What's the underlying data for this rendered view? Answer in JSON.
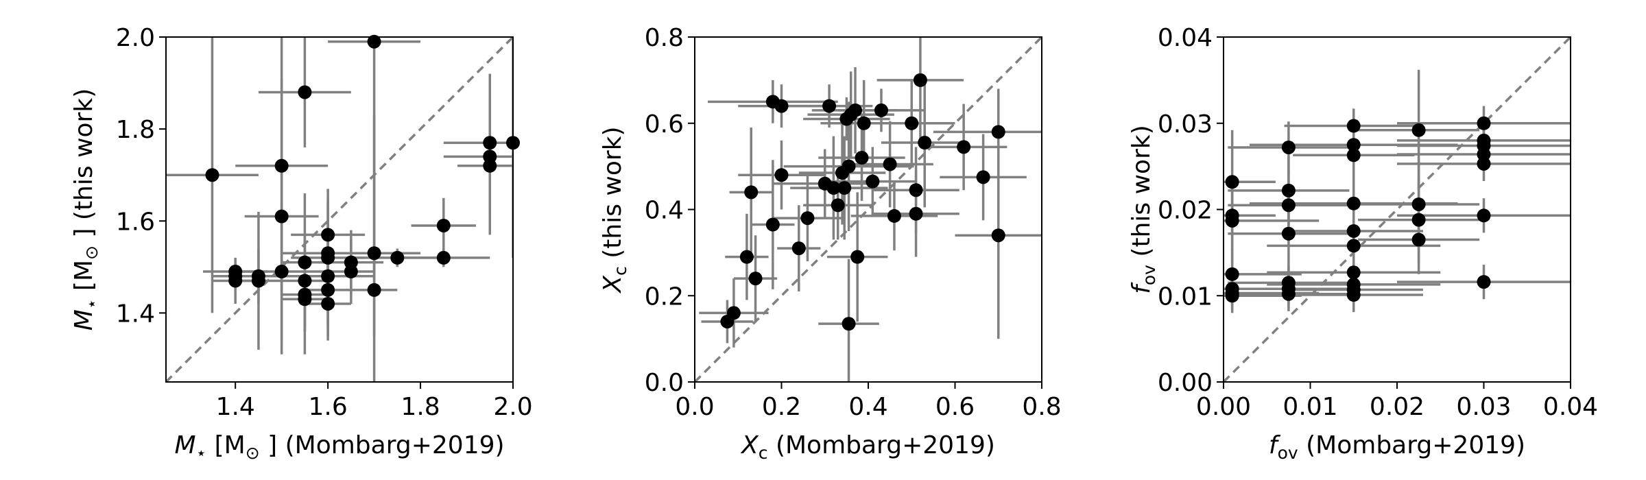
{
  "chart_data": [
    {
      "type": "scatter",
      "xlabel_parts": {
        "sym": "M",
        "sub": "⋆",
        "unit_open": " [M",
        "unit_sub": "⊙",
        "unit_close": " ] (Mombarg+2019)"
      },
      "ylabel_parts": {
        "sym": "M",
        "sub": "⋆",
        "unit_open": " [M",
        "unit_sub": "⊙",
        "unit_close": " ] (this work)"
      },
      "xlim": [
        1.25,
        2.0
      ],
      "ylim": [
        1.25,
        2.0
      ],
      "xticks": [
        1.4,
        1.6,
        1.8,
        2.0
      ],
      "yticks": [
        1.4,
        1.6,
        1.8,
        2.0
      ],
      "xtick_labels": [
        "1.4",
        "1.6",
        "1.8",
        "2.0"
      ],
      "ytick_labels": [
        "1.4",
        "1.6",
        "1.8",
        "2.0"
      ],
      "diagonal": true,
      "points": [
        {
          "x": 1.35,
          "y": 1.7,
          "xerr": 0.1,
          "yerr": 0.3
        },
        {
          "x": 1.4,
          "y": 1.49,
          "xerr": 0.07,
          "yerr": 0.02
        },
        {
          "x": 1.4,
          "y": 1.48,
          "xerr": 0.05,
          "yerr": 0.03
        },
        {
          "x": 1.4,
          "y": 1.47,
          "xerr": 0.05,
          "yerr": 0.05
        },
        {
          "x": 1.45,
          "y": 1.48,
          "xerr": 0.05,
          "yerr": 0.06
        },
        {
          "x": 1.45,
          "y": 1.47,
          "xerr": 0.05,
          "yerr": 0.15
        },
        {
          "x": 1.5,
          "y": 1.72,
          "xerr": 0.1,
          "yerr": 0.28
        },
        {
          "x": 1.5,
          "y": 1.61,
          "xerr": 0.08,
          "yerr": 0.3
        },
        {
          "x": 1.5,
          "y": 1.49,
          "xerr": 0.1,
          "yerr": 0.15
        },
        {
          "x": 1.55,
          "y": 1.88,
          "xerr": 0.1,
          "yerr": 0.12
        },
        {
          "x": 1.55,
          "y": 1.51,
          "xerr": 0.05,
          "yerr": 0.15
        },
        {
          "x": 1.55,
          "y": 1.47,
          "xerr": 0.05,
          "yerr": 0.1
        },
        {
          "x": 1.55,
          "y": 1.44,
          "xerr": 0.05,
          "yerr": 0.08
        },
        {
          "x": 1.55,
          "y": 1.43,
          "xerr": 0.05,
          "yerr": 0.12
        },
        {
          "x": 1.6,
          "y": 1.57,
          "xerr": 0.08,
          "yerr": 0.07
        },
        {
          "x": 1.6,
          "y": 1.53,
          "xerr": 0.1,
          "yerr": 0.12
        },
        {
          "x": 1.6,
          "y": 1.52,
          "xerr": 0.08,
          "yerr": 0.15
        },
        {
          "x": 1.6,
          "y": 1.48,
          "xerr": 0.1,
          "yerr": 0.1
        },
        {
          "x": 1.6,
          "y": 1.45,
          "xerr": 0.05,
          "yerr": 0.1
        },
        {
          "x": 1.6,
          "y": 1.42,
          "xerr": 0.05,
          "yerr": 0.08
        },
        {
          "x": 1.65,
          "y": 1.51,
          "xerr": 0.07,
          "yerr": 0.07
        },
        {
          "x": 1.65,
          "y": 1.49,
          "xerr": 0.05,
          "yerr": 0.07
        },
        {
          "x": 1.7,
          "y": 1.99,
          "xerr": 0.1,
          "yerr": 0.5
        },
        {
          "x": 1.7,
          "y": 1.53,
          "xerr": 0.1,
          "yerr": 0.3
        },
        {
          "x": 1.7,
          "y": 1.45,
          "xerr": 0.05,
          "yerr": 0.1
        },
        {
          "x": 1.75,
          "y": 1.52,
          "xerr": 0.1,
          "yerr": 0.02
        },
        {
          "x": 1.85,
          "y": 1.59,
          "xerr": 0.07,
          "yerr": 0.06
        },
        {
          "x": 1.85,
          "y": 1.52,
          "xerr": 0.1,
          "yerr": 0.02
        },
        {
          "x": 1.95,
          "y": 1.77,
          "xerr": 0.1,
          "yerr": 0.15
        },
        {
          "x": 1.95,
          "y": 1.74,
          "xerr": 0.1,
          "yerr": 0.03
        },
        {
          "x": 1.95,
          "y": 1.72,
          "xerr": 0.07,
          "yerr": 0.15
        },
        {
          "x": 2.0,
          "y": 1.77,
          "xerr": 0.1,
          "yerr": 0.25
        }
      ]
    },
    {
      "type": "scatter",
      "xlabel_parts": {
        "sym": "X",
        "sub": "c",
        "rest": " (Mombarg+2019)"
      },
      "ylabel_parts": {
        "sym": "X",
        "sub": "c",
        "rest": " (this work)"
      },
      "xlim": [
        0.0,
        0.8
      ],
      "ylim": [
        0.0,
        0.8
      ],
      "xticks": [
        0.0,
        0.2,
        0.4,
        0.6,
        0.8
      ],
      "yticks": [
        0.0,
        0.2,
        0.4,
        0.6,
        0.8
      ],
      "xtick_labels": [
        "0.0",
        "0.2",
        "0.4",
        "0.6",
        "0.8"
      ],
      "ytick_labels": [
        "0.0",
        "0.2",
        "0.4",
        "0.6",
        "0.8"
      ],
      "diagonal": true,
      "points": [
        {
          "x": 0.075,
          "y": 0.14,
          "xerr": 0.06,
          "yerr": 0.05
        },
        {
          "x": 0.09,
          "y": 0.16,
          "xerr": 0.08,
          "yerr": 0.08
        },
        {
          "x": 0.12,
          "y": 0.29,
          "xerr": 0.05,
          "yerr": 0.1
        },
        {
          "x": 0.13,
          "y": 0.44,
          "xerr": 0.05,
          "yerr": 0.15
        },
        {
          "x": 0.14,
          "y": 0.24,
          "xerr": 0.05,
          "yerr": 0.1
        },
        {
          "x": 0.18,
          "y": 0.65,
          "xerr": 0.15,
          "yerr": 0.05
        },
        {
          "x": 0.18,
          "y": 0.365,
          "xerr": 0.05,
          "yerr": 0.15
        },
        {
          "x": 0.2,
          "y": 0.64,
          "xerr": 0.1,
          "yerr": 0.05
        },
        {
          "x": 0.2,
          "y": 0.48,
          "xerr": 0.1,
          "yerr": 0.08
        },
        {
          "x": 0.24,
          "y": 0.31,
          "xerr": 0.05,
          "yerr": 0.1
        },
        {
          "x": 0.26,
          "y": 0.38,
          "xerr": 0.08,
          "yerr": 0.1
        },
        {
          "x": 0.3,
          "y": 0.46,
          "xerr": 0.12,
          "yerr": 0.08
        },
        {
          "x": 0.31,
          "y": 0.64,
          "xerr": 0.1,
          "yerr": 0.05
        },
        {
          "x": 0.32,
          "y": 0.45,
          "xerr": 0.1,
          "yerr": 0.12
        },
        {
          "x": 0.33,
          "y": 0.41,
          "xerr": 0.08,
          "yerr": 0.08
        },
        {
          "x": 0.34,
          "y": 0.485,
          "xerr": 0.1,
          "yerr": 0.12
        },
        {
          "x": 0.345,
          "y": 0.45,
          "xerr": 0.1,
          "yerr": 0.12
        },
        {
          "x": 0.35,
          "y": 0.61,
          "xerr": 0.1,
          "yerr": 0.05
        },
        {
          "x": 0.355,
          "y": 0.5,
          "xerr": 0.15,
          "yerr": 0.15
        },
        {
          "x": 0.355,
          "y": 0.135,
          "xerr": 0.07,
          "yerr": 0.15
        },
        {
          "x": 0.36,
          "y": 0.62,
          "xerr": 0.1,
          "yerr": 0.1
        },
        {
          "x": 0.37,
          "y": 0.63,
          "xerr": 0.1,
          "yerr": 0.1
        },
        {
          "x": 0.375,
          "y": 0.29,
          "xerr": 0.07,
          "yerr": 0.15
        },
        {
          "x": 0.385,
          "y": 0.52,
          "xerr": 0.1,
          "yerr": 0.1
        },
        {
          "x": 0.39,
          "y": 0.6,
          "xerr": 0.1,
          "yerr": 0.1
        },
        {
          "x": 0.41,
          "y": 0.465,
          "xerr": 0.1,
          "yerr": 0.08
        },
        {
          "x": 0.43,
          "y": 0.63,
          "xerr": 0.1,
          "yerr": 0.05
        },
        {
          "x": 0.45,
          "y": 0.505,
          "xerr": 0.1,
          "yerr": 0.1
        },
        {
          "x": 0.46,
          "y": 0.385,
          "xerr": 0.1,
          "yerr": 0.08
        },
        {
          "x": 0.5,
          "y": 0.6,
          "xerr": 0.1,
          "yerr": 0.1
        },
        {
          "x": 0.51,
          "y": 0.39,
          "xerr": 0.1,
          "yerr": 0.1
        },
        {
          "x": 0.51,
          "y": 0.445,
          "xerr": 0.1,
          "yerr": 0.1
        },
        {
          "x": 0.52,
          "y": 0.7,
          "xerr": 0.1,
          "yerr": 0.15
        },
        {
          "x": 0.53,
          "y": 0.555,
          "xerr": 0.1,
          "yerr": 0.15
        },
        {
          "x": 0.62,
          "y": 0.545,
          "xerr": 0.1,
          "yerr": 0.1
        },
        {
          "x": 0.665,
          "y": 0.475,
          "xerr": 0.1,
          "yerr": 0.1
        },
        {
          "x": 0.7,
          "y": 0.58,
          "xerr": 0.15,
          "yerr": 0.1
        },
        {
          "x": 0.7,
          "y": 0.34,
          "xerr": 0.1,
          "yerr": 0.24
        }
      ]
    },
    {
      "type": "scatter",
      "xlabel_parts": {
        "sym": "f",
        "sub": "ov",
        "rest": " (Mombarg+2019)"
      },
      "ylabel_parts": {
        "sym": "f",
        "sub": "ov",
        "rest": " (this work)"
      },
      "xlim": [
        0.0,
        0.04
      ],
      "ylim": [
        0.0,
        0.04
      ],
      "xticks": [
        0.0,
        0.01,
        0.02,
        0.03,
        0.04
      ],
      "yticks": [
        0.0,
        0.01,
        0.02,
        0.03,
        0.04
      ],
      "xtick_labels": [
        "0.00",
        "0.01",
        "0.02",
        "0.03",
        "0.04"
      ],
      "ytick_labels": [
        "0.00",
        "0.01",
        "0.02",
        "0.03",
        "0.04"
      ],
      "diagonal": true,
      "points": [
        {
          "x": 0.001,
          "y": 0.0232,
          "xerr": 0.005,
          "yerr": 0.006
        },
        {
          "x": 0.001,
          "y": 0.0193,
          "xerr": 0.005,
          "yerr": 0.004
        },
        {
          "x": 0.001,
          "y": 0.0187,
          "xerr": 0.01,
          "yerr": 0.005
        },
        {
          "x": 0.001,
          "y": 0.0125,
          "xerr": 0.008,
          "yerr": 0.003
        },
        {
          "x": 0.001,
          "y": 0.0108,
          "xerr": 0.01,
          "yerr": 0.002
        },
        {
          "x": 0.001,
          "y": 0.0103,
          "xerr": 0.01,
          "yerr": 0.002
        },
        {
          "x": 0.001,
          "y": 0.01,
          "xerr": 0.008,
          "yerr": 0.002
        },
        {
          "x": 0.0075,
          "y": 0.0272,
          "xerr": 0.007,
          "yerr": 0.003
        },
        {
          "x": 0.0075,
          "y": 0.0222,
          "xerr": 0.007,
          "yerr": 0.004
        },
        {
          "x": 0.0075,
          "y": 0.0205,
          "xerr": 0.007,
          "yerr": 0.004
        },
        {
          "x": 0.0075,
          "y": 0.0172,
          "xerr": 0.007,
          "yerr": 0.005
        },
        {
          "x": 0.0075,
          "y": 0.0115,
          "xerr": 0.007,
          "yerr": 0.002
        },
        {
          "x": 0.0075,
          "y": 0.0108,
          "xerr": 0.007,
          "yerr": 0.002
        },
        {
          "x": 0.0075,
          "y": 0.0102,
          "xerr": 0.007,
          "yerr": 0.002
        },
        {
          "x": 0.015,
          "y": 0.0297,
          "xerr": 0.008,
          "yerr": 0.002
        },
        {
          "x": 0.015,
          "y": 0.0275,
          "xerr": 0.012,
          "yerr": 0.002
        },
        {
          "x": 0.015,
          "y": 0.0263,
          "xerr": 0.007,
          "yerr": 0.003
        },
        {
          "x": 0.015,
          "y": 0.0207,
          "xerr": 0.012,
          "yerr": 0.005
        },
        {
          "x": 0.015,
          "y": 0.0175,
          "xerr": 0.008,
          "yerr": 0.005
        },
        {
          "x": 0.015,
          "y": 0.0158,
          "xerr": 0.01,
          "yerr": 0.004
        },
        {
          "x": 0.015,
          "y": 0.0127,
          "xerr": 0.01,
          "yerr": 0.002
        },
        {
          "x": 0.015,
          "y": 0.0113,
          "xerr": 0.01,
          "yerr": 0.002
        },
        {
          "x": 0.015,
          "y": 0.0107,
          "xerr": 0.008,
          "yerr": 0.002
        },
        {
          "x": 0.015,
          "y": 0.0101,
          "xerr": 0.008,
          "yerr": 0.002
        },
        {
          "x": 0.0225,
          "y": 0.0292,
          "xerr": 0.007,
          "yerr": 0.007
        },
        {
          "x": 0.0225,
          "y": 0.0206,
          "xerr": 0.007,
          "yerr": 0.005
        },
        {
          "x": 0.0225,
          "y": 0.0188,
          "xerr": 0.007,
          "yerr": 0.005
        },
        {
          "x": 0.0225,
          "y": 0.0165,
          "xerr": 0.007,
          "yerr": 0.004
        },
        {
          "x": 0.03,
          "y": 0.03,
          "xerr": 0.01,
          "yerr": 0.002
        },
        {
          "x": 0.03,
          "y": 0.028,
          "xerr": 0.01,
          "yerr": 0.002
        },
        {
          "x": 0.03,
          "y": 0.0274,
          "xerr": 0.01,
          "yerr": 0.002
        },
        {
          "x": 0.03,
          "y": 0.0264,
          "xerr": 0.01,
          "yerr": 0.002
        },
        {
          "x": 0.03,
          "y": 0.0253,
          "xerr": 0.01,
          "yerr": 0.002
        },
        {
          "x": 0.03,
          "y": 0.0193,
          "xerr": 0.01,
          "yerr": 0.002
        },
        {
          "x": 0.03,
          "y": 0.0116,
          "xerr": 0.01,
          "yerr": 0.002
        }
      ]
    }
  ]
}
